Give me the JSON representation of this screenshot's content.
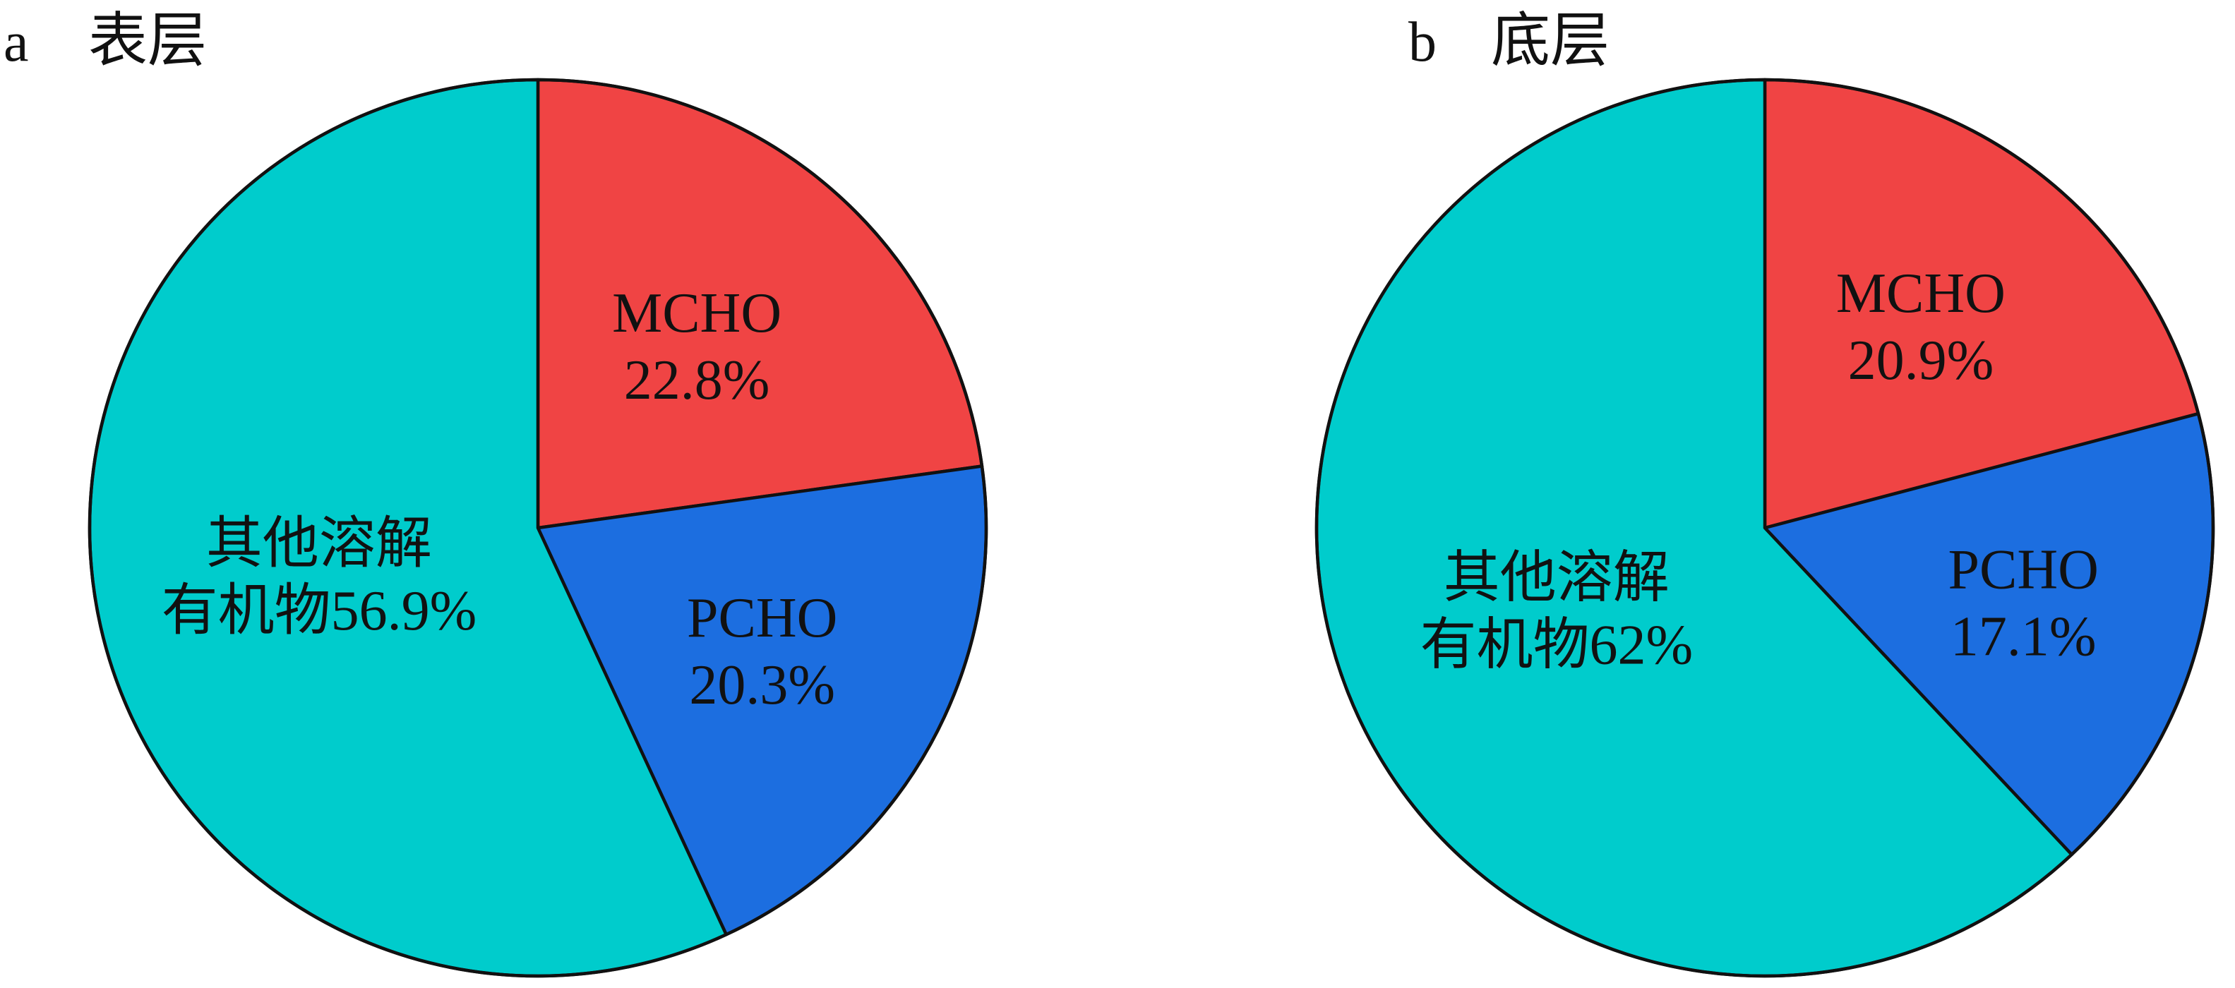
{
  "chart_data": [
    {
      "type": "pie",
      "panel": "a",
      "title": "表层",
      "start": "12 o'clock, clockwise",
      "slices": [
        {
          "name": "MCHO",
          "value": 22.8,
          "label_lines": [
            "MCHO",
            "22.8%"
          ],
          "color": "#f04444"
        },
        {
          "name": "PCHO",
          "value": 20.3,
          "label_lines": [
            "PCHO",
            "20.3%"
          ],
          "color": "#1c6ee0"
        },
        {
          "name": "其他溶解有机物",
          "value": 56.9,
          "label_lines": [
            "其他溶解",
            "有机物56.9%"
          ],
          "color": "#00cccc"
        }
      ]
    },
    {
      "type": "pie",
      "panel": "b",
      "title": "底层",
      "start": "12 o'clock, clockwise",
      "slices": [
        {
          "name": "MCHO",
          "value": 20.9,
          "label_lines": [
            "MCHO",
            "20.9%"
          ],
          "color": "#f04444"
        },
        {
          "name": "PCHO",
          "value": 17.1,
          "label_lines": [
            "PCHO",
            "17.1%"
          ],
          "color": "#1c6ee0"
        },
        {
          "name": "其他溶解有机物",
          "value": 62,
          "label_lines": [
            "其他溶解",
            "有机物62%"
          ],
          "color": "#00cccc"
        }
      ]
    }
  ]
}
